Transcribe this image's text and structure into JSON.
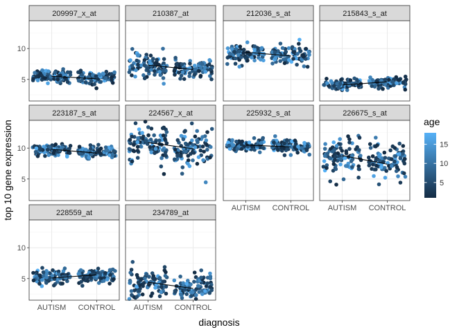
{
  "chart_data": {
    "type": "scatter",
    "xlabel": "diagnosis",
    "ylabel": "top 10 gene expression",
    "categories": [
      "AUTISM",
      "CONTROL"
    ],
    "ylim": [
      1.5,
      14.5
    ],
    "y_ticks": [
      5,
      10
    ],
    "legend": {
      "title": "age",
      "ticks": [
        5,
        10,
        15
      ],
      "range": [
        1,
        18
      ],
      "low_color": "#132B43",
      "high_color": "#56B1F7",
      "placement": "right"
    },
    "colors": {
      "strip_fill": "#d9d9d9",
      "panel_border": "#333333",
      "grid_major": "#ebebeb",
      "grid_minor": "#f5f5f5",
      "trend_line": "#000000"
    },
    "panels": [
      {
        "name": "209997_x_at",
        "autism": {
          "mean": 5.5,
          "sd": 0.55
        },
        "control": {
          "mean": 5.3,
          "sd": 0.5
        },
        "trend": [
          5.5,
          5.1
        ]
      },
      {
        "name": "210387_at",
        "autism": {
          "mean": 7.2,
          "sd": 1.0
        },
        "control": {
          "mean": 6.7,
          "sd": 0.8
        },
        "trend": [
          7.3,
          6.6
        ]
      },
      {
        "name": "212036_s_at",
        "autism": {
          "mean": 9.2,
          "sd": 0.75
        },
        "control": {
          "mean": 8.9,
          "sd": 0.8
        },
        "trend": [
          9.4,
          8.8
        ]
      },
      {
        "name": "215843_s_at",
        "autism": {
          "mean": 4.2,
          "sd": 0.45
        },
        "control": {
          "mean": 4.5,
          "sd": 0.4
        },
        "trend": [
          4.1,
          4.6
        ]
      },
      {
        "name": "223187_s_at",
        "autism": {
          "mean": 9.6,
          "sd": 0.45
        },
        "control": {
          "mean": 9.4,
          "sd": 0.5
        },
        "trend": [
          9.8,
          9.2
        ]
      },
      {
        "name": "224567_x_at",
        "autism": {
          "mean": 10.6,
          "sd": 1.6
        },
        "control": {
          "mean": 10.1,
          "sd": 1.5
        },
        "trend": [
          10.9,
          9.9
        ]
      },
      {
        "name": "225932_s_at",
        "autism": {
          "mean": 10.4,
          "sd": 0.45
        },
        "control": {
          "mean": 10.3,
          "sd": 0.55
        },
        "trend": [
          10.5,
          10.2
        ]
      },
      {
        "name": "226675_s_at",
        "autism": {
          "mean": 8.6,
          "sd": 1.5
        },
        "control": {
          "mean": 7.7,
          "sd": 1.4
        },
        "trend": [
          8.8,
          7.4
        ]
      },
      {
        "name": "228559_at",
        "autism": {
          "mean": 5.2,
          "sd": 0.55
        },
        "control": {
          "mean": 5.5,
          "sd": 0.5
        },
        "trend": [
          5.1,
          5.6
        ]
      },
      {
        "name": "234789_at",
        "autism": {
          "mean": 4.3,
          "sd": 1.2
        },
        "control": {
          "mean": 3.6,
          "sd": 1.0
        },
        "trend": [
          4.4,
          3.4
        ]
      }
    ]
  }
}
